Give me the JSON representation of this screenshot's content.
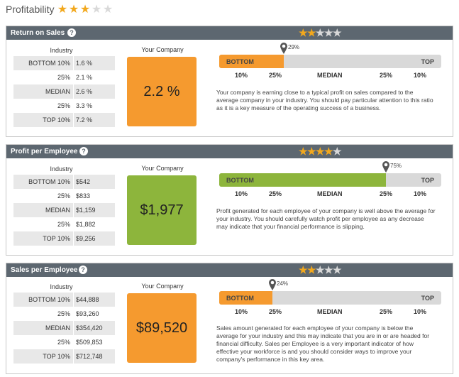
{
  "page": {
    "title": "Profitability",
    "rating": 3,
    "max_rating": 5
  },
  "colors": {
    "header_bg": "#5d6770",
    "star_on": "#f2a81d",
    "star_off": "#d9d9d9",
    "orange": "#f59a2f",
    "green": "#8db53c",
    "track": "#d9d9d9"
  },
  "icons": {
    "help": "help-icon",
    "marker": "map-pin-icon"
  },
  "sections": [
    {
      "title": "Return on Sales",
      "rating": 2,
      "industry_label": "Industry",
      "your_company_label": "Your Company",
      "your_company_value": "2.2 %",
      "box_color": "orange",
      "industry": [
        {
          "label": "BOTTOM 10%",
          "value": "1.6 %"
        },
        {
          "label": "25%",
          "value": "2.1 %"
        },
        {
          "label": "MEDIAN",
          "value": "2.6 %"
        },
        {
          "label": "25%",
          "value": "3.3 %"
        },
        {
          "label": "TOP 10%",
          "value": "7.2 %"
        }
      ],
      "bar": {
        "bottom_label": "BOTTOM",
        "top_label": "TOP",
        "percentile": 29,
        "percentile_label": "29%"
      },
      "ticks": [
        "10%",
        "25%",
        "MEDIAN",
        "25%",
        "10%"
      ],
      "description": "Your company is earning close to a typical profit on sales compared to the average company in your industry. You should pay particular attention to this ratio as it is a key measure of the operating success of a business."
    },
    {
      "title": "Profit per Employee",
      "rating": 4,
      "industry_label": "Industry",
      "your_company_label": "Your Company",
      "your_company_value": "$1,977",
      "box_color": "green",
      "industry": [
        {
          "label": "BOTTOM 10%",
          "value": "$542"
        },
        {
          "label": "25%",
          "value": "$833"
        },
        {
          "label": "MEDIAN",
          "value": "$1,159"
        },
        {
          "label": "25%",
          "value": "$1,882"
        },
        {
          "label": "TOP 10%",
          "value": "$9,256"
        }
      ],
      "bar": {
        "bottom_label": "BOTTOM",
        "top_label": "TOP",
        "percentile": 75,
        "percentile_label": "75%"
      },
      "ticks": [
        "10%",
        "25%",
        "MEDIAN",
        "25%",
        "10%"
      ],
      "description": "Profit generated for each employee of your company is well above the average for your industry. You should carefully watch profit per employee as any decrease may indicate that your financial performance is slipping."
    },
    {
      "title": "Sales per Employee",
      "rating": 2,
      "industry_label": "Industry",
      "your_company_label": "Your Company",
      "your_company_value": "$89,520",
      "box_color": "orange",
      "industry": [
        {
          "label": "BOTTOM 10%",
          "value": "$44,888"
        },
        {
          "label": "25%",
          "value": "$93,260"
        },
        {
          "label": "MEDIAN",
          "value": "$354,420"
        },
        {
          "label": "25%",
          "value": "$509,853"
        },
        {
          "label": "TOP 10%",
          "value": "$712,748"
        }
      ],
      "bar": {
        "bottom_label": "BOTTOM",
        "top_label": "TOP",
        "percentile": 24,
        "percentile_label": "24%"
      },
      "ticks": [
        "10%",
        "25%",
        "MEDIAN",
        "25%",
        "10%"
      ],
      "description": "Sales amount generated for each employee of your company is below the average for your industry and this may indicate that you are in or are headed for financial difficulty. Sales per Employee is a very important indicator of how effective your workforce is and you should consider ways to improve your company's performance in this key area."
    }
  ]
}
